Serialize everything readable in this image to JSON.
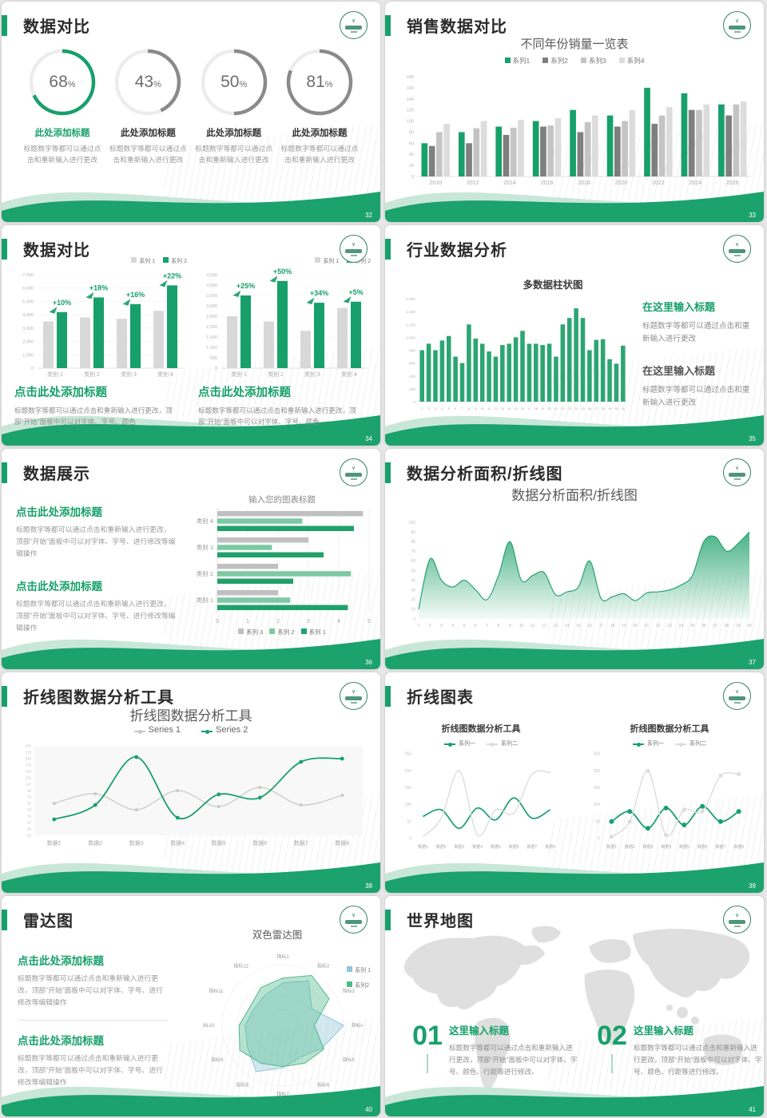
{
  "theme": {
    "green": "#17A06B",
    "green_dark": "#128857",
    "light_green": "#7CC9A2",
    "mint": "#C9E7D8",
    "gray_dark": "#7F7F7F",
    "gray_mid": "#A6A6A6",
    "gray_light": "#C9C9C9",
    "gray_lighter": "#DCDCDC",
    "blue": "#8FC7DA",
    "text_dark": "#2B2B2B",
    "text_gray": "#8F8F8F"
  },
  "slides": {
    "s32": {
      "title": "数据对比",
      "page": "32",
      "donuts": [
        {
          "pct": "68",
          "unit": "%",
          "caption": "此处添加标题",
          "body": "标题数字等都可以通过点击和重新输入进行更改"
        },
        {
          "pct": "43",
          "unit": "%",
          "caption": "此处添加标题",
          "body": "标题数字等都可以通过点击和重新输入进行更改"
        },
        {
          "pct": "50",
          "unit": "%",
          "caption": "此处添加标题",
          "body": "标题数字等都可以通过点击和重新输入进行更改"
        },
        {
          "pct": "81",
          "unit": "%",
          "caption": "此处添加标题",
          "body": "标题数字等都可以通过点击和重新输入进行更改"
        }
      ]
    },
    "s33": {
      "title": "销售数据对比",
      "page": "33"
    },
    "s34": {
      "title": "数据对比",
      "page": "34",
      "caption": "点击此处添加标题",
      "body": "标题数字等都可以通过点击和重新输入进行更改，顶部“开始”面板中可以对字体、字号、颜色"
    },
    "s35": {
      "title": "行业数据分析",
      "page": "35",
      "blocks": [
        {
          "head": "在这里输入标题",
          "body": "标题数字等都可以通过点击和重新输入进行更改"
        },
        {
          "head": "在这里输入标题",
          "body": "标题数字等都可以通过点击和重新输入进行更改"
        }
      ]
    },
    "s36": {
      "title": "数据展示",
      "page": "36",
      "blocks": [
        {
          "head": "点击此处添加标题",
          "body": "标题数字等都可以通过点击和重新输入进行更改，顶部“开始”面板中可以对字体、字号、进行修改等编辑操作"
        },
        {
          "head": "点击此处添加标题",
          "body": "标题数字等都可以通过点击和重新输入进行更改，顶部“开始”面板中可以对字体、字号、进行修改等编辑操作"
        }
      ]
    },
    "s37": {
      "title": "数据分析面积/折线图",
      "page": "37"
    },
    "s38": {
      "title": "折线图数据分析工具",
      "page": "38"
    },
    "s39": {
      "title": "折线图表",
      "page": "39"
    },
    "s40": {
      "title": "雷达图",
      "page": "40",
      "blocks": [
        {
          "head": "点击此处添加标题",
          "body": "标题数字等都可以通过点击和重新输入进行更改，顶部“开始”面板中可以对字体、字号、进行修改等编辑操作"
        },
        {
          "head": "点击此处添加标题",
          "body": "标题数字等都可以通过点击和重新输入进行更改，顶部“开始”面板中可以对字体、字号、进行修改等编辑操作"
        }
      ]
    },
    "s41": {
      "title": "世界地图",
      "page": "41",
      "items": [
        {
          "num": "01",
          "head": "这里输入标题",
          "body": "标题数字等都可以通过点击和重新输入进行更改，顶部“开始”面板中可以对字体、字号、颜色、行距等进行修改。"
        },
        {
          "num": "02",
          "head": "这里输入标题",
          "body": "标题数字等都可以通过点击和重新输入进行更改，顶部“开始”面板中可以对字体、字号、颜色、行距等进行修改。"
        }
      ]
    }
  },
  "chart_data": [
    {
      "id": "d68",
      "type": "donut",
      "value": 68,
      "color": "#17A06B",
      "track": "#ECECEC"
    },
    {
      "id": "d43",
      "type": "donut",
      "value": 43,
      "color": "#8A8A8A",
      "track": "#ECECEC"
    },
    {
      "id": "d50",
      "type": "donut",
      "value": 50,
      "color": "#8A8A8A",
      "track": "#ECECEC"
    },
    {
      "id": "d81",
      "type": "donut",
      "value": 81,
      "color": "#8A8A8A",
      "track": "#ECECEC"
    },
    {
      "id": "sales",
      "type": "grouped_bar",
      "title": "不同年份销量一览表",
      "ylim": [
        0,
        180
      ],
      "ystep": 20,
      "ml": 26,
      "yfs": 5.5,
      "xfs": 7,
      "categories": [
        "2010",
        "2012",
        "2014",
        "2016",
        "2018",
        "2020",
        "2022",
        "2024",
        "2026"
      ],
      "series": [
        {
          "name": "系列1",
          "color": "#17A06B",
          "values": [
            60,
            80,
            90,
            100,
            120,
            110,
            160,
            150,
            130
          ]
        },
        {
          "name": "系列2",
          "color": "#7F7F7F",
          "values": [
            55,
            60,
            75,
            90,
            80,
            90,
            95,
            120,
            110
          ]
        },
        {
          "name": "系列3",
          "color": "#C4C4C4",
          "values": [
            80,
            87,
            88,
            92,
            98,
            100,
            110,
            120,
            130
          ]
        },
        {
          "name": "系列4",
          "color": "#DCDCDC",
          "values": [
            95,
            100,
            102,
            105,
            110,
            120,
            125,
            130,
            135
          ]
        }
      ]
    },
    {
      "id": "cmp_left",
      "type": "grouped_bar",
      "title": "",
      "ylim": [
        0,
        7000
      ],
      "ystep": 1000,
      "fmt": "comma",
      "grid": true,
      "ml": 28,
      "yfs": 5.5,
      "xfs": 7,
      "bw": 13,
      "bgap": 4,
      "categories": [
        "类别 1",
        "类别 2",
        "类别 3",
        "类别 4"
      ],
      "badges": [
        "+10%",
        "+18%",
        "+16%",
        "+22%"
      ],
      "series": [
        {
          "name": "系列 1",
          "color": "#D8D8D8",
          "values": [
            3500,
            3800,
            3700,
            4300
          ]
        },
        {
          "name": "系列 2",
          "color": "#17A06B",
          "values": [
            4200,
            5300,
            4800,
            6200
          ]
        }
      ]
    },
    {
      "id": "cmp_right",
      "type": "grouped_bar",
      "title": "",
      "ylim": [
        0,
        4500
      ],
      "ystep": 500,
      "fmt": "comma",
      "grid": true,
      "ml": 28,
      "yfs": 5.5,
      "xfs": 7,
      "bw": 13,
      "bgap": 4,
      "categories": [
        "类别 1",
        "类别 2",
        "类别 3",
        "类别 4"
      ],
      "badges": [
        "+25%",
        "+50%",
        "+34%",
        "+5%"
      ],
      "series": [
        {
          "name": "系列 1",
          "color": "#D8D8D8",
          "values": [
            2500,
            2250,
            1800,
            2900
          ]
        },
        {
          "name": "系列 2",
          "color": "#17A06B",
          "values": [
            3500,
            4200,
            3150,
            3200
          ]
        }
      ]
    },
    {
      "id": "industry",
      "type": "bar",
      "title": "多数据柱状图",
      "ylim": [
        0,
        1600
      ],
      "ystep": 200,
      "fmt": "comma",
      "ml": 26,
      "yfs": 4.8,
      "xfs": 4,
      "categories": [
        "1",
        "2",
        "3",
        "4",
        "5",
        "6",
        "7",
        "8",
        "9",
        "10",
        "11",
        "12",
        "13",
        "14",
        "15",
        "16",
        "17",
        "18",
        "19",
        "20",
        "21",
        "22",
        "23",
        "24",
        "25",
        "26",
        "27",
        "28",
        "29",
        "30",
        "31"
      ],
      "series": [
        {
          "name": "系列1",
          "color": "#2BA673",
          "values": [
            800,
            900,
            800,
            950,
            1020,
            700,
            600,
            1200,
            980,
            900,
            780,
            700,
            880,
            900,
            1000,
            1100,
            900,
            900,
            880,
            900,
            700,
            1200,
            1300,
            1450,
            1300,
            800,
            960,
            970,
            660,
            590,
            870
          ]
        }
      ]
    },
    {
      "id": "hbar",
      "type": "hbar",
      "title": "输入您的图表标题",
      "xlim": [
        0,
        5
      ],
      "xstep": 1,
      "categories": [
        "类别 4",
        "类别 3",
        "类别 2",
        "类别 1"
      ],
      "series": [
        {
          "name": "系列 3",
          "color": "#C0C0C0",
          "values": [
            4.8,
            3.0,
            2.0,
            2.0
          ]
        },
        {
          "name": "系列 2",
          "color": "#7CC9A2",
          "values": [
            2.8,
            1.8,
            4.4,
            2.4
          ]
        },
        {
          "name": "系列 1",
          "color": "#21A06B",
          "values": [
            4.5,
            3.5,
            2.5,
            4.3
          ]
        }
      ]
    },
    {
      "id": "area",
      "type": "area",
      "title": "数据分析面积/折线图",
      "ylim": [
        0,
        100
      ],
      "ystep": 10,
      "x": [
        1,
        2,
        3,
        4,
        5,
        6,
        7,
        8,
        9,
        10,
        11,
        12,
        13,
        14,
        15,
        16,
        17,
        18,
        19,
        20,
        21,
        22,
        23,
        24,
        25,
        26,
        27,
        28,
        29,
        30
      ],
      "values": [
        10,
        62,
        40,
        33,
        40,
        30,
        20,
        45,
        80,
        40,
        45,
        48,
        25,
        28,
        33,
        60,
        21,
        23,
        26,
        19,
        27,
        28,
        30,
        35,
        45,
        80,
        85,
        70,
        78,
        90
      ]
    },
    {
      "id": "line_tool",
      "type": "line",
      "title": "折线图数据分析工具",
      "ylim": [
        -50,
        230
      ],
      "ystep": 20,
      "ml": 20,
      "yfs": 4.3,
      "xfs": 7,
      "bg": true,
      "categories": [
        "数据1",
        "数据2",
        "数据3",
        "数据4",
        "数据5",
        "数据6",
        "数据7",
        "数据8"
      ],
      "series": [
        {
          "name": "Series 1",
          "color": "#C9C9C9",
          "width": 1.3,
          "markers": true,
          "mr": 2,
          "values": [
            50,
            80,
            30,
            90,
            40,
            100,
            45,
            75
          ]
        },
        {
          "name": "Series 2",
          "color": "#17A06B",
          "width": 1.8,
          "markers": true,
          "mr": 2.4,
          "values": [
            0,
            45,
            195,
            5,
            78,
            68,
            180,
            190
          ]
        }
      ]
    },
    {
      "id": "line_a",
      "type": "line",
      "title": "折线图数据分析工具",
      "ylim": [
        0,
        250
      ],
      "ystep": 50,
      "ml": 22,
      "yfs": 5,
      "xfs": 5,
      "categories": [
        "数据1",
        "数据2",
        "数据3",
        "数据4",
        "数据5",
        "数据6",
        "数据7",
        "数据8"
      ],
      "series": [
        {
          "name": "系列一",
          "color": "#17A06B",
          "width": 1.7,
          "values": [
            65,
            85,
            30,
            90,
            55,
            120,
            60,
            85
          ]
        },
        {
          "name": "系列二",
          "color": "#DCDCDC",
          "width": 1.4,
          "values": [
            5,
            60,
            200,
            10,
            85,
            75,
            190,
            195
          ]
        }
      ]
    },
    {
      "id": "line_b",
      "type": "line",
      "title": "折线图数据分析工具",
      "ylim": [
        0,
        250
      ],
      "ystep": 50,
      "ml": 22,
      "yfs": 5,
      "xfs": 5,
      "categories": [
        "数据1",
        "数据2",
        "数据3",
        "数据4",
        "数据5",
        "数据6",
        "数据7",
        "数据8"
      ],
      "series": [
        {
          "name": "系列一",
          "color": "#17A06B",
          "width": 1.8,
          "markers": true,
          "mr": 3,
          "values": [
            50,
            80,
            30,
            90,
            40,
            95,
            50,
            80
          ]
        },
        {
          "name": "系列二",
          "color": "#DCDCDC",
          "width": 1.4,
          "markers": true,
          "mr": 2.5,
          "values": [
            5,
            50,
            200,
            10,
            85,
            80,
            185,
            190
          ]
        }
      ]
    },
    {
      "id": "radar",
      "type": "radar",
      "title": "双色雷达图",
      "rmax": 100,
      "categories": [
        "指标1",
        "指标2",
        "指标3",
        "指标4",
        "指标5",
        "指标6",
        "指标7",
        "指标8",
        "指标9",
        "指标10",
        "指标11",
        "指标12"
      ],
      "series": [
        {
          "name": "系列 1",
          "color": "#8FC7DA",
          "values": [
            70,
            85,
            55,
            100,
            75,
            60,
            70,
            88,
            68,
            62,
            55,
            58
          ]
        },
        {
          "name": "系列2",
          "color": "#4FB98B",
          "values": [
            78,
            95,
            88,
            52,
            78,
            72,
            68,
            72,
            82,
            72,
            62,
            72
          ]
        }
      ]
    }
  ]
}
